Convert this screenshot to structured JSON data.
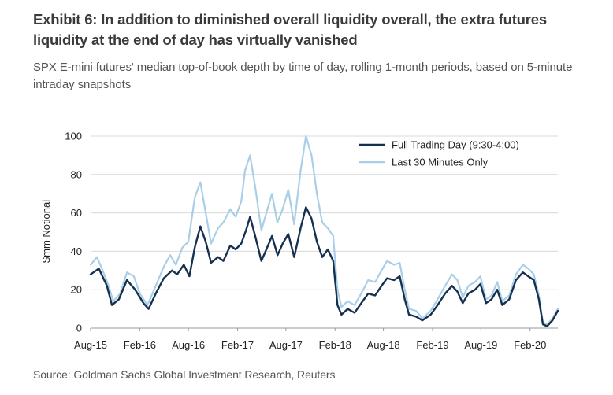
{
  "header": {
    "title": "Exhibit 6: In addition to diminished overall liquidity overall, the extra futures liquidity at the end of day has virtually vanished",
    "subtitle": "SPX E-mini futures' median top-of-book depth by time of day, rolling 1-month periods, based on 5-minute intraday snapshots"
  },
  "footer": {
    "source": "Source: Goldman Sachs Global Investment Research, Reuters"
  },
  "chart_data": {
    "type": "line",
    "ylabel": "$mm Notional",
    "ylim": [
      0,
      100
    ],
    "yticks": [
      "0",
      "20",
      "40",
      "60",
      "80",
      "100"
    ],
    "xlim": [
      "2015-08-01",
      "2020-05-15"
    ],
    "xticks": [
      {
        "label": "Aug-15",
        "date": "2015-08-01"
      },
      {
        "label": "Feb-16",
        "date": "2016-02-01"
      },
      {
        "label": "Aug-16",
        "date": "2016-08-01"
      },
      {
        "label": "Feb-17",
        "date": "2017-02-01"
      },
      {
        "label": "Aug-17",
        "date": "2017-08-01"
      },
      {
        "label": "Feb-18",
        "date": "2018-02-01"
      },
      {
        "label": "Aug-18",
        "date": "2018-08-01"
      },
      {
        "label": "Feb-19",
        "date": "2019-02-01"
      },
      {
        "label": "Aug-19",
        "date": "2019-08-01"
      },
      {
        "label": "Feb-20",
        "date": "2020-02-01"
      }
    ],
    "legend_position": "top-right",
    "grid": "horizontal",
    "series": [
      {
        "name": "Full Trading Day (9:30-4:00)",
        "color": "#16304f",
        "points": [
          [
            "2015-08-01",
            28
          ],
          [
            "2015-09-01",
            31
          ],
          [
            "2015-10-01",
            22
          ],
          [
            "2015-10-20",
            12
          ],
          [
            "2015-11-15",
            15
          ],
          [
            "2015-12-15",
            25
          ],
          [
            "2016-01-15",
            20
          ],
          [
            "2016-02-15",
            13
          ],
          [
            "2016-03-05",
            10
          ],
          [
            "2016-04-01",
            18
          ],
          [
            "2016-05-01",
            26
          ],
          [
            "2016-06-01",
            30
          ],
          [
            "2016-06-20",
            28
          ],
          [
            "2016-07-15",
            33
          ],
          [
            "2016-08-05",
            27
          ],
          [
            "2016-08-25",
            42
          ],
          [
            "2016-09-15",
            53
          ],
          [
            "2016-10-05",
            45
          ],
          [
            "2016-10-25",
            34
          ],
          [
            "2016-11-20",
            37
          ],
          [
            "2016-12-10",
            35
          ],
          [
            "2017-01-05",
            43
          ],
          [
            "2017-01-25",
            41
          ],
          [
            "2017-02-15",
            44
          ],
          [
            "2017-03-05",
            51
          ],
          [
            "2017-03-20",
            58
          ],
          [
            "2017-04-10",
            47
          ],
          [
            "2017-05-01",
            35
          ],
          [
            "2017-05-20",
            41
          ],
          [
            "2017-06-10",
            48
          ],
          [
            "2017-07-01",
            38
          ],
          [
            "2017-07-20",
            44
          ],
          [
            "2017-08-10",
            49
          ],
          [
            "2017-09-01",
            37
          ],
          [
            "2017-09-25",
            52
          ],
          [
            "2017-10-15",
            63
          ],
          [
            "2017-11-05",
            57
          ],
          [
            "2017-11-25",
            45
          ],
          [
            "2017-12-15",
            37
          ],
          [
            "2018-01-05",
            41
          ],
          [
            "2018-01-25",
            35
          ],
          [
            "2018-02-10",
            12
          ],
          [
            "2018-02-25",
            7
          ],
          [
            "2018-03-20",
            10
          ],
          [
            "2018-04-15",
            8
          ],
          [
            "2018-05-10",
            13
          ],
          [
            "2018-06-05",
            18
          ],
          [
            "2018-07-01",
            17
          ],
          [
            "2018-07-25",
            22
          ],
          [
            "2018-08-15",
            26
          ],
          [
            "2018-09-10",
            25
          ],
          [
            "2018-10-01",
            27
          ],
          [
            "2018-10-20",
            15
          ],
          [
            "2018-11-05",
            7
          ],
          [
            "2018-12-01",
            6
          ],
          [
            "2018-12-25",
            4
          ],
          [
            "2019-01-25",
            7
          ],
          [
            "2019-02-20",
            12
          ],
          [
            "2019-03-20",
            18
          ],
          [
            "2019-04-15",
            22
          ],
          [
            "2019-05-05",
            19
          ],
          [
            "2019-05-25",
            13
          ],
          [
            "2019-06-15",
            18
          ],
          [
            "2019-07-10",
            20
          ],
          [
            "2019-07-30",
            23
          ],
          [
            "2019-08-20",
            13
          ],
          [
            "2019-09-10",
            15
          ],
          [
            "2019-10-01",
            20
          ],
          [
            "2019-10-20",
            12
          ],
          [
            "2019-11-15",
            15
          ],
          [
            "2019-12-10",
            25
          ],
          [
            "2020-01-05",
            29
          ],
          [
            "2020-01-25",
            27
          ],
          [
            "2020-02-15",
            25
          ],
          [
            "2020-03-05",
            15
          ],
          [
            "2020-03-20",
            2
          ],
          [
            "2020-04-05",
            1
          ],
          [
            "2020-04-25",
            4
          ],
          [
            "2020-05-15",
            9
          ]
        ]
      },
      {
        "name": "Last 30 Minutes Only",
        "color": "#a9cfe8",
        "points": [
          [
            "2015-08-01",
            33
          ],
          [
            "2015-08-25",
            37
          ],
          [
            "2015-09-15",
            30
          ],
          [
            "2015-10-05",
            23
          ],
          [
            "2015-10-25",
            14
          ],
          [
            "2015-11-20",
            18
          ],
          [
            "2015-12-15",
            29
          ],
          [
            "2016-01-10",
            27
          ],
          [
            "2016-02-01",
            18
          ],
          [
            "2016-03-01",
            12
          ],
          [
            "2016-04-01",
            22
          ],
          [
            "2016-05-01",
            32
          ],
          [
            "2016-05-25",
            38
          ],
          [
            "2016-06-15",
            33
          ],
          [
            "2016-07-10",
            42
          ],
          [
            "2016-08-01",
            45
          ],
          [
            "2016-08-25",
            68
          ],
          [
            "2016-09-15",
            76
          ],
          [
            "2016-10-05",
            60
          ],
          [
            "2016-10-25",
            44
          ],
          [
            "2016-11-20",
            52
          ],
          [
            "2016-12-10",
            55
          ],
          [
            "2017-01-05",
            62
          ],
          [
            "2017-01-25",
            58
          ],
          [
            "2017-02-15",
            66
          ],
          [
            "2017-03-01",
            82
          ],
          [
            "2017-03-20",
            90
          ],
          [
            "2017-04-10",
            72
          ],
          [
            "2017-05-01",
            51
          ],
          [
            "2017-05-20",
            60
          ],
          [
            "2017-06-10",
            70
          ],
          [
            "2017-06-30",
            55
          ],
          [
            "2017-07-20",
            62
          ],
          [
            "2017-08-10",
            72
          ],
          [
            "2017-09-01",
            54
          ],
          [
            "2017-09-25",
            82
          ],
          [
            "2017-10-15",
            100
          ],
          [
            "2017-11-05",
            90
          ],
          [
            "2017-11-25",
            70
          ],
          [
            "2017-12-15",
            55
          ],
          [
            "2018-01-05",
            52
          ],
          [
            "2018-01-25",
            48
          ],
          [
            "2018-02-10",
            20
          ],
          [
            "2018-02-25",
            11
          ],
          [
            "2018-03-20",
            14
          ],
          [
            "2018-04-15",
            12
          ],
          [
            "2018-05-10",
            18
          ],
          [
            "2018-06-05",
            25
          ],
          [
            "2018-07-01",
            24
          ],
          [
            "2018-07-25",
            30
          ],
          [
            "2018-08-15",
            35
          ],
          [
            "2018-09-10",
            33
          ],
          [
            "2018-10-01",
            34
          ],
          [
            "2018-10-20",
            20
          ],
          [
            "2018-11-05",
            10
          ],
          [
            "2018-12-01",
            9
          ],
          [
            "2018-12-25",
            5
          ],
          [
            "2019-01-25",
            9
          ],
          [
            "2019-02-20",
            15
          ],
          [
            "2019-03-20",
            22
          ],
          [
            "2019-04-15",
            28
          ],
          [
            "2019-05-05",
            25
          ],
          [
            "2019-05-25",
            16
          ],
          [
            "2019-06-15",
            22
          ],
          [
            "2019-07-10",
            24
          ],
          [
            "2019-07-30",
            27
          ],
          [
            "2019-08-20",
            15
          ],
          [
            "2019-09-10",
            17
          ],
          [
            "2019-10-01",
            24
          ],
          [
            "2019-10-20",
            14
          ],
          [
            "2019-11-15",
            17
          ],
          [
            "2019-12-10",
            28
          ],
          [
            "2020-01-05",
            33
          ],
          [
            "2020-01-25",
            31
          ],
          [
            "2020-02-15",
            28
          ],
          [
            "2020-03-05",
            17
          ],
          [
            "2020-03-20",
            3
          ],
          [
            "2020-04-05",
            2
          ],
          [
            "2020-04-25",
            5
          ],
          [
            "2020-05-15",
            10
          ]
        ]
      }
    ]
  }
}
